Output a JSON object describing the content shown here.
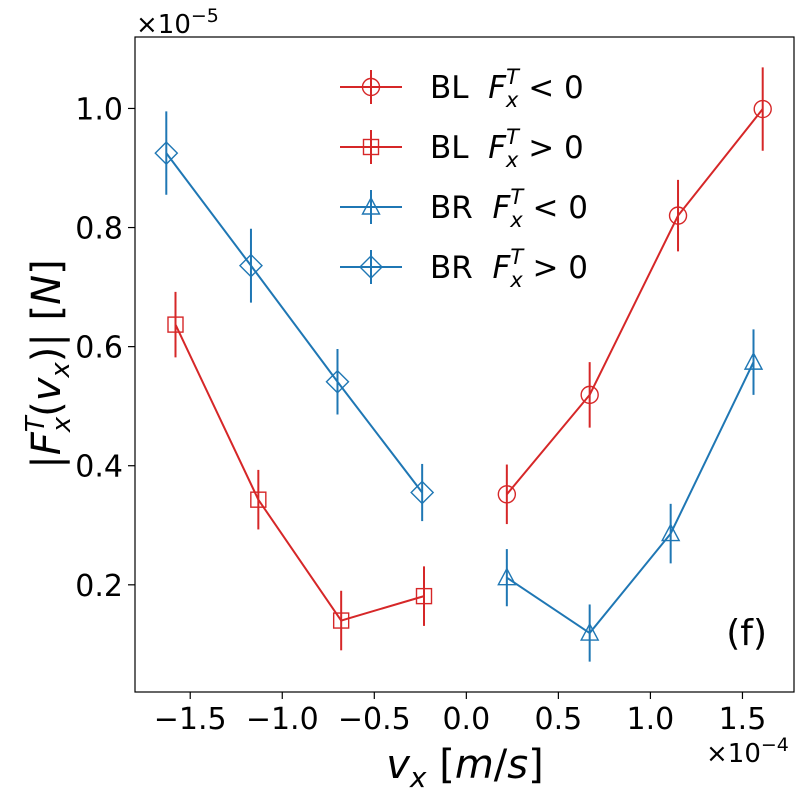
{
  "chart_data": {
    "type": "scatter",
    "panel_label": "(f)",
    "xlabel": "v_x [m/s]",
    "ylabel": "|F_x^T(v_x)| [N]",
    "x_multiplier": "×10^−4",
    "y_multiplier": "×10^−5",
    "xlim": [
      -1.8,
      1.78
    ],
    "ylim": [
      0.02,
      1.12
    ],
    "x_ticks": [
      -1.5,
      -1.0,
      -0.5,
      0.0,
      0.5,
      1.0,
      1.5
    ],
    "x_tick_labels": [
      "−1.5",
      "−1.0",
      "−0.5",
      "0.0",
      "0.5",
      "1.0",
      "1.5"
    ],
    "y_ticks": [
      0.2,
      0.4,
      0.6,
      0.8,
      1.0
    ],
    "y_tick_labels": [
      "0.2",
      "0.4",
      "0.6",
      "0.8",
      "1.0"
    ],
    "grid": false,
    "legend_position": "top-center",
    "series": [
      {
        "name": "BL  F_x^T < 0",
        "legend": {
          "prefix": "BL",
          "sign": "<"
        },
        "color": "#d62728",
        "marker": "circle",
        "x": [
          0.22,
          0.67,
          1.15,
          1.61
        ],
        "y": [
          0.352,
          0.519,
          0.82,
          0.999
        ],
        "yerr": [
          0.05,
          0.055,
          0.06,
          0.07
        ]
      },
      {
        "name": "BL  F_x^T > 0",
        "legend": {
          "prefix": "BL",
          "sign": ">"
        },
        "color": "#d62728",
        "marker": "square",
        "x": [
          -1.58,
          -1.13,
          -0.68,
          -0.23
        ],
        "y": [
          0.637,
          0.343,
          0.14,
          0.181
        ],
        "yerr": [
          0.055,
          0.05,
          0.05,
          0.05
        ]
      },
      {
        "name": "BR  F_x^T < 0",
        "legend": {
          "prefix": "BR",
          "sign": "<"
        },
        "color": "#1f77b4",
        "marker": "triangle",
        "x": [
          0.22,
          0.67,
          1.11,
          1.56
        ],
        "y": [
          0.212,
          0.119,
          0.286,
          0.574
        ],
        "yerr": [
          0.048,
          0.048,
          0.05,
          0.055
        ]
      },
      {
        "name": "BR  F_x^T > 0",
        "legend": {
          "prefix": "BR",
          "sign": ">"
        },
        "color": "#1f77b4",
        "marker": "diamond",
        "x": [
          -1.63,
          -1.17,
          -0.7,
          -0.24
        ],
        "y": [
          0.925,
          0.736,
          0.541,
          0.355
        ],
        "yerr": [
          0.07,
          0.062,
          0.055,
          0.048
        ]
      }
    ]
  }
}
